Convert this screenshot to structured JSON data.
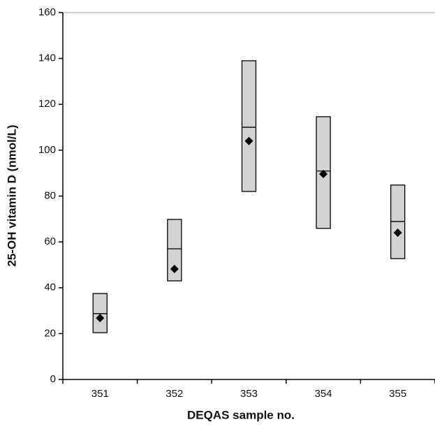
{
  "chart_data": {
    "type": "range-box",
    "xlabel": "DEQAS sample no.",
    "ylabel": "25-OH vitamin D (nmol/L)",
    "categories": [
      "351",
      "352",
      "353",
      "354",
      "355"
    ],
    "low": [
      20.4,
      43,
      82,
      65.9,
      52.7
    ],
    "high": [
      37.5,
      69.8,
      139,
      114.6,
      84.8
    ],
    "median": [
      28.7,
      57,
      110,
      90.9,
      68.9
    ],
    "values": [
      26.8,
      48.2,
      104,
      89.6,
      64
    ],
    "color": "#d3d3d3",
    "ylim": [
      0,
      160
    ],
    "yticks": [
      0,
      20,
      40,
      60,
      80,
      100,
      120,
      140,
      160
    ]
  }
}
